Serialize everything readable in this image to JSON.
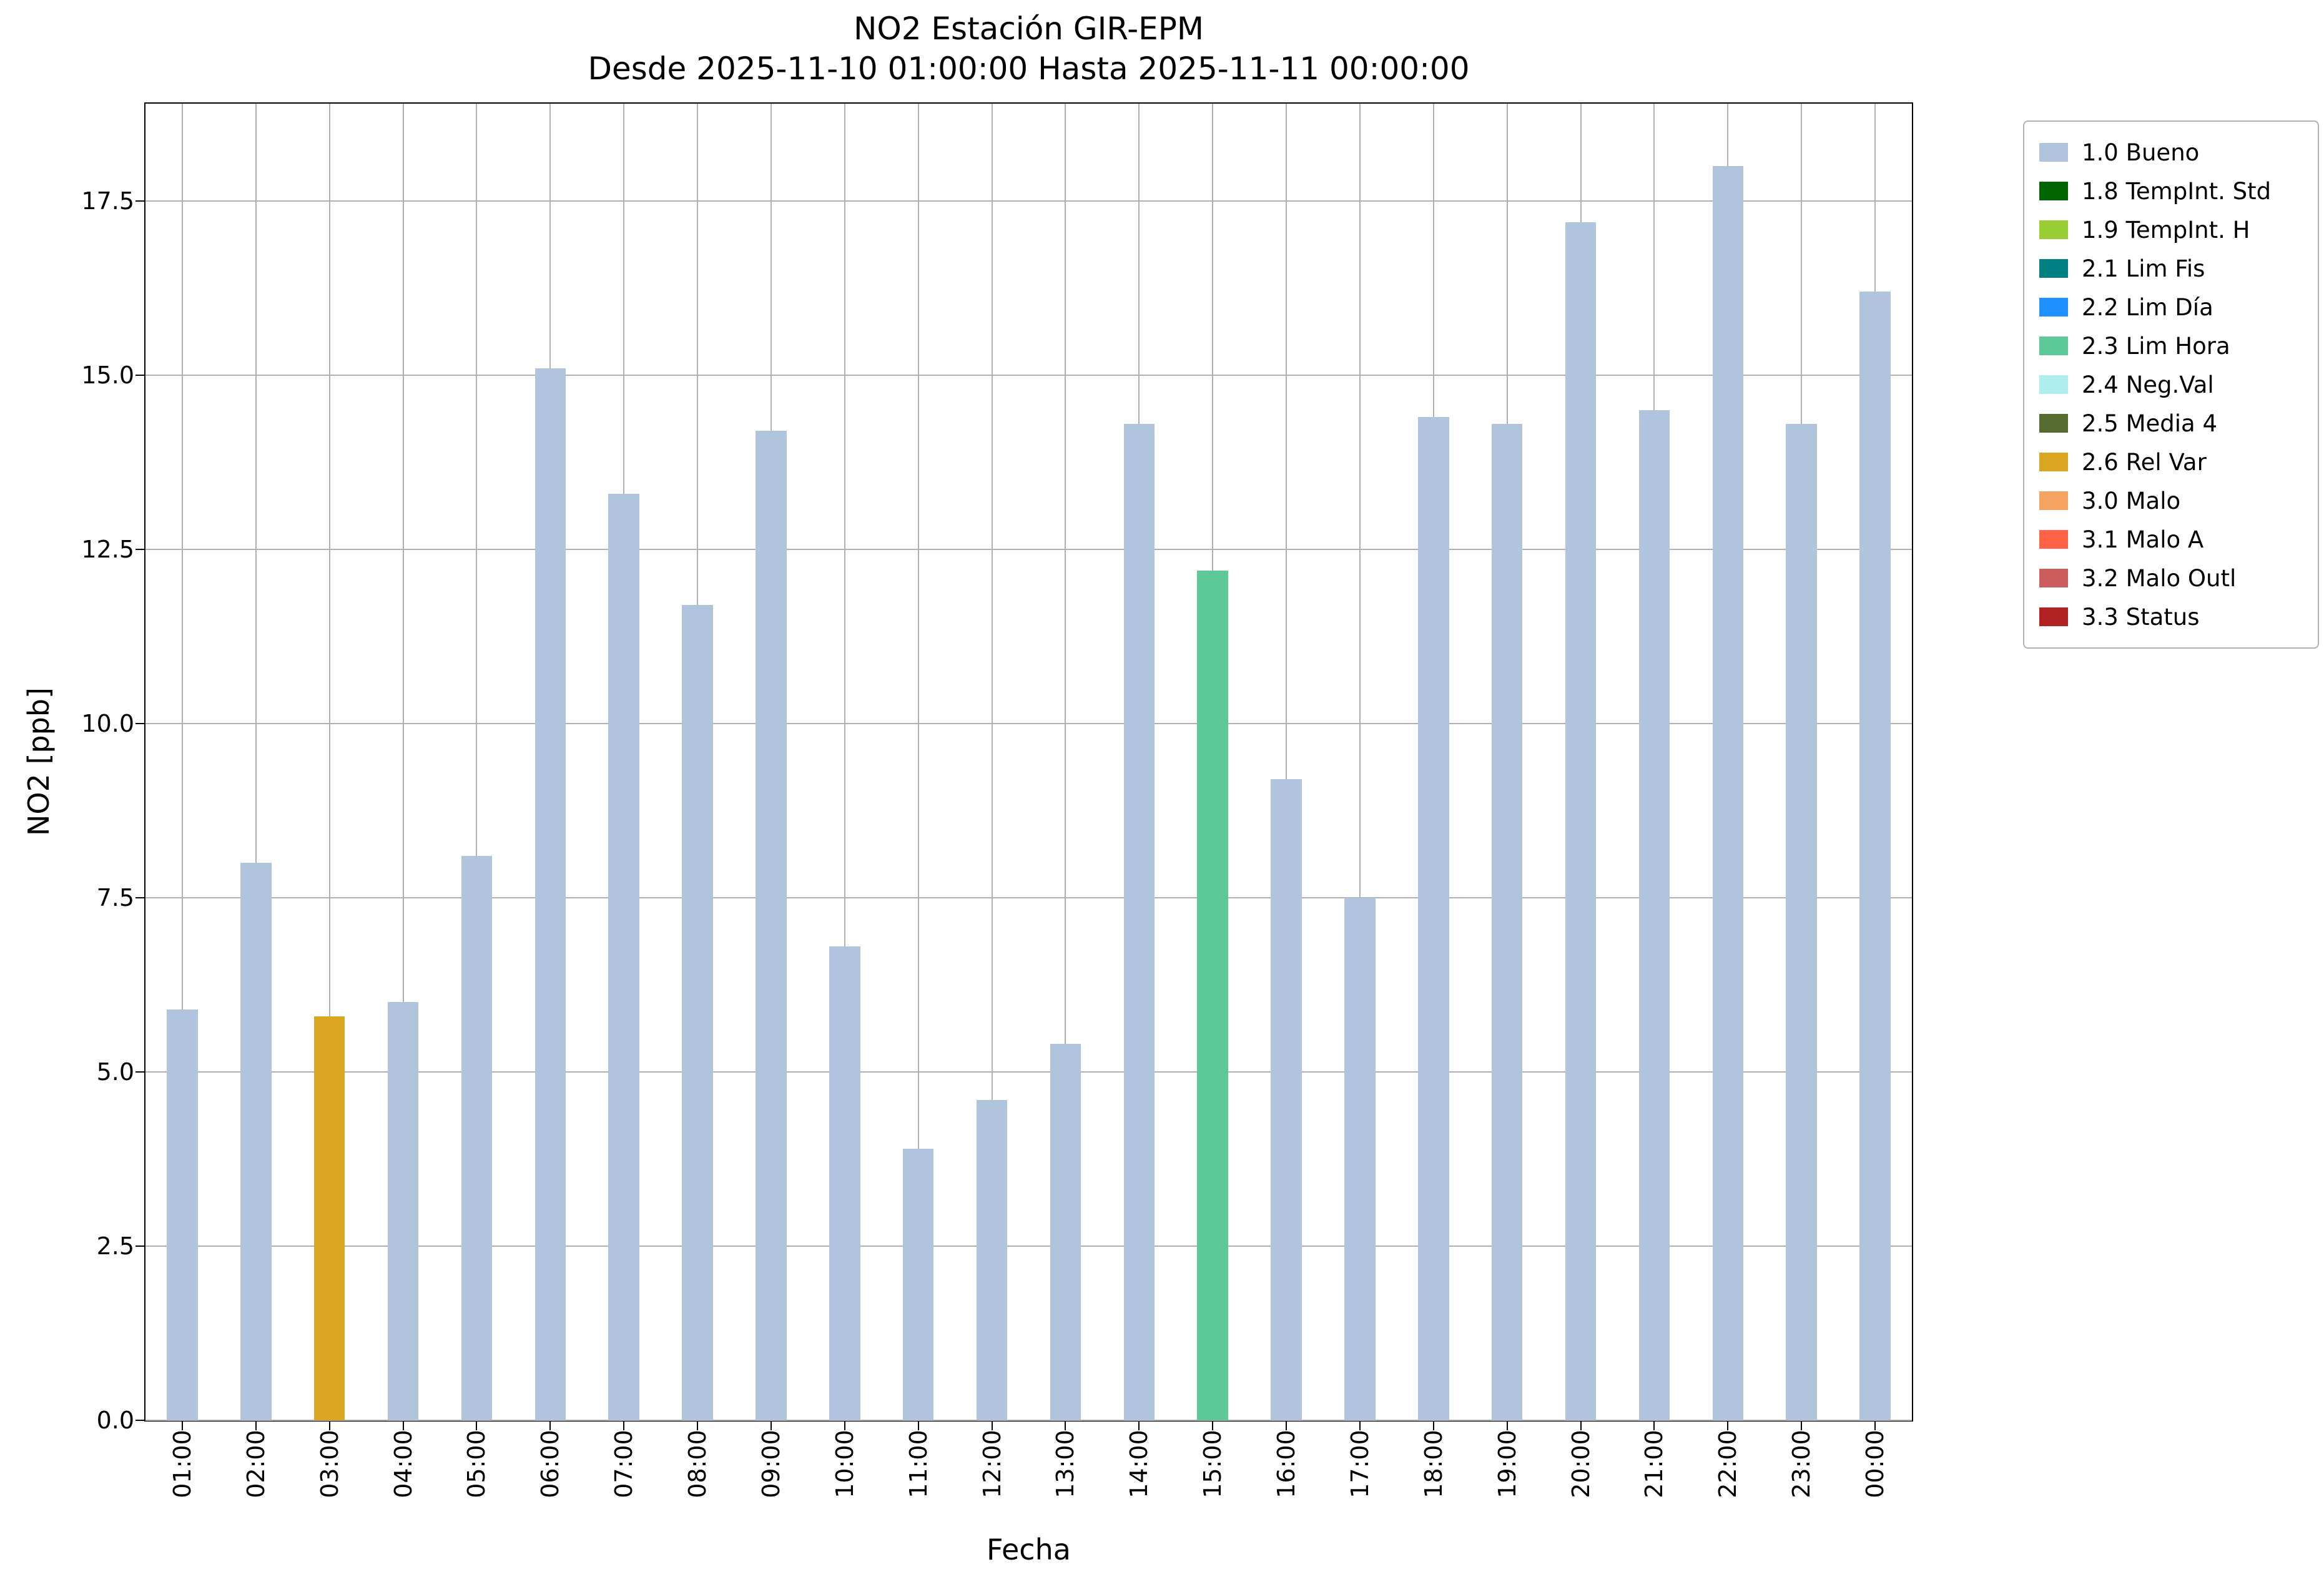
{
  "chart_data": {
    "type": "bar",
    "title": "NO2 Estación GIR-EPM",
    "subtitle": "Desde 2025-11-10 01:00:00 Hasta 2025-11-11 00:00:00",
    "xlabel": "Fecha",
    "ylabel": "NO2 [ppb]",
    "ylim": [
      0,
      18.9
    ],
    "yticks": [
      0,
      2.5,
      5,
      7.5,
      10,
      12.5,
      15,
      17.5
    ],
    "grid": true,
    "legend_position": "outside-right",
    "categories": [
      "01:00",
      "02:00",
      "03:00",
      "04:00",
      "05:00",
      "06:00",
      "07:00",
      "08:00",
      "09:00",
      "10:00",
      "11:00",
      "12:00",
      "13:00",
      "14:00",
      "15:00",
      "16:00",
      "17:00",
      "18:00",
      "19:00",
      "20:00",
      "21:00",
      "22:00",
      "23:00",
      "00:00"
    ],
    "values": [
      5.9,
      8.0,
      5.8,
      6.0,
      8.1,
      15.1,
      13.3,
      11.7,
      14.2,
      6.8,
      3.9,
      4.6,
      5.4,
      14.3,
      12.2,
      9.2,
      7.5,
      14.4,
      14.3,
      17.2,
      14.5,
      18.0,
      14.3,
      16.2
    ],
    "flags": [
      "1.0 Bueno",
      "1.0 Bueno",
      "2.6 Rel Var",
      "1.0 Bueno",
      "1.0 Bueno",
      "1.0 Bueno",
      "1.0 Bueno",
      "1.0 Bueno",
      "1.0 Bueno",
      "1.0 Bueno",
      "1.0 Bueno",
      "1.0 Bueno",
      "1.0 Bueno",
      "1.0 Bueno",
      "2.3 Lim Hora",
      "1.0 Bueno",
      "1.0 Bueno",
      "1.0 Bueno",
      "1.0 Bueno",
      "1.0 Bueno",
      "1.0 Bueno",
      "1.0 Bueno",
      "1.0 Bueno",
      "1.0 Bueno"
    ],
    "legend": [
      {
        "label": "1.0 Bueno",
        "color": "#b0c4de"
      },
      {
        "label": "1.8 TempInt. Std",
        "color": "#006400"
      },
      {
        "label": "1.9 TempInt. H",
        "color": "#9acd32"
      },
      {
        "label": "2.1 Lim Fis",
        "color": "#008080"
      },
      {
        "label": "2.2 Lim Día",
        "color": "#1e90ff"
      },
      {
        "label": "2.3 Lim Hora",
        "color": "#5ec998"
      },
      {
        "label": "2.4 Neg.Val",
        "color": "#afeeee"
      },
      {
        "label": "2.5 Media 4",
        "color": "#556b2f"
      },
      {
        "label": "2.6 Rel Var",
        "color": "#daa520"
      },
      {
        "label": "3.0 Malo",
        "color": "#f4a460"
      },
      {
        "label": "3.1 Malo A",
        "color": "#ff6347"
      },
      {
        "label": "3.2 Malo Outl",
        "color": "#cd5c5c"
      },
      {
        "label": "3.3 Status",
        "color": "#b22222"
      }
    ]
  }
}
